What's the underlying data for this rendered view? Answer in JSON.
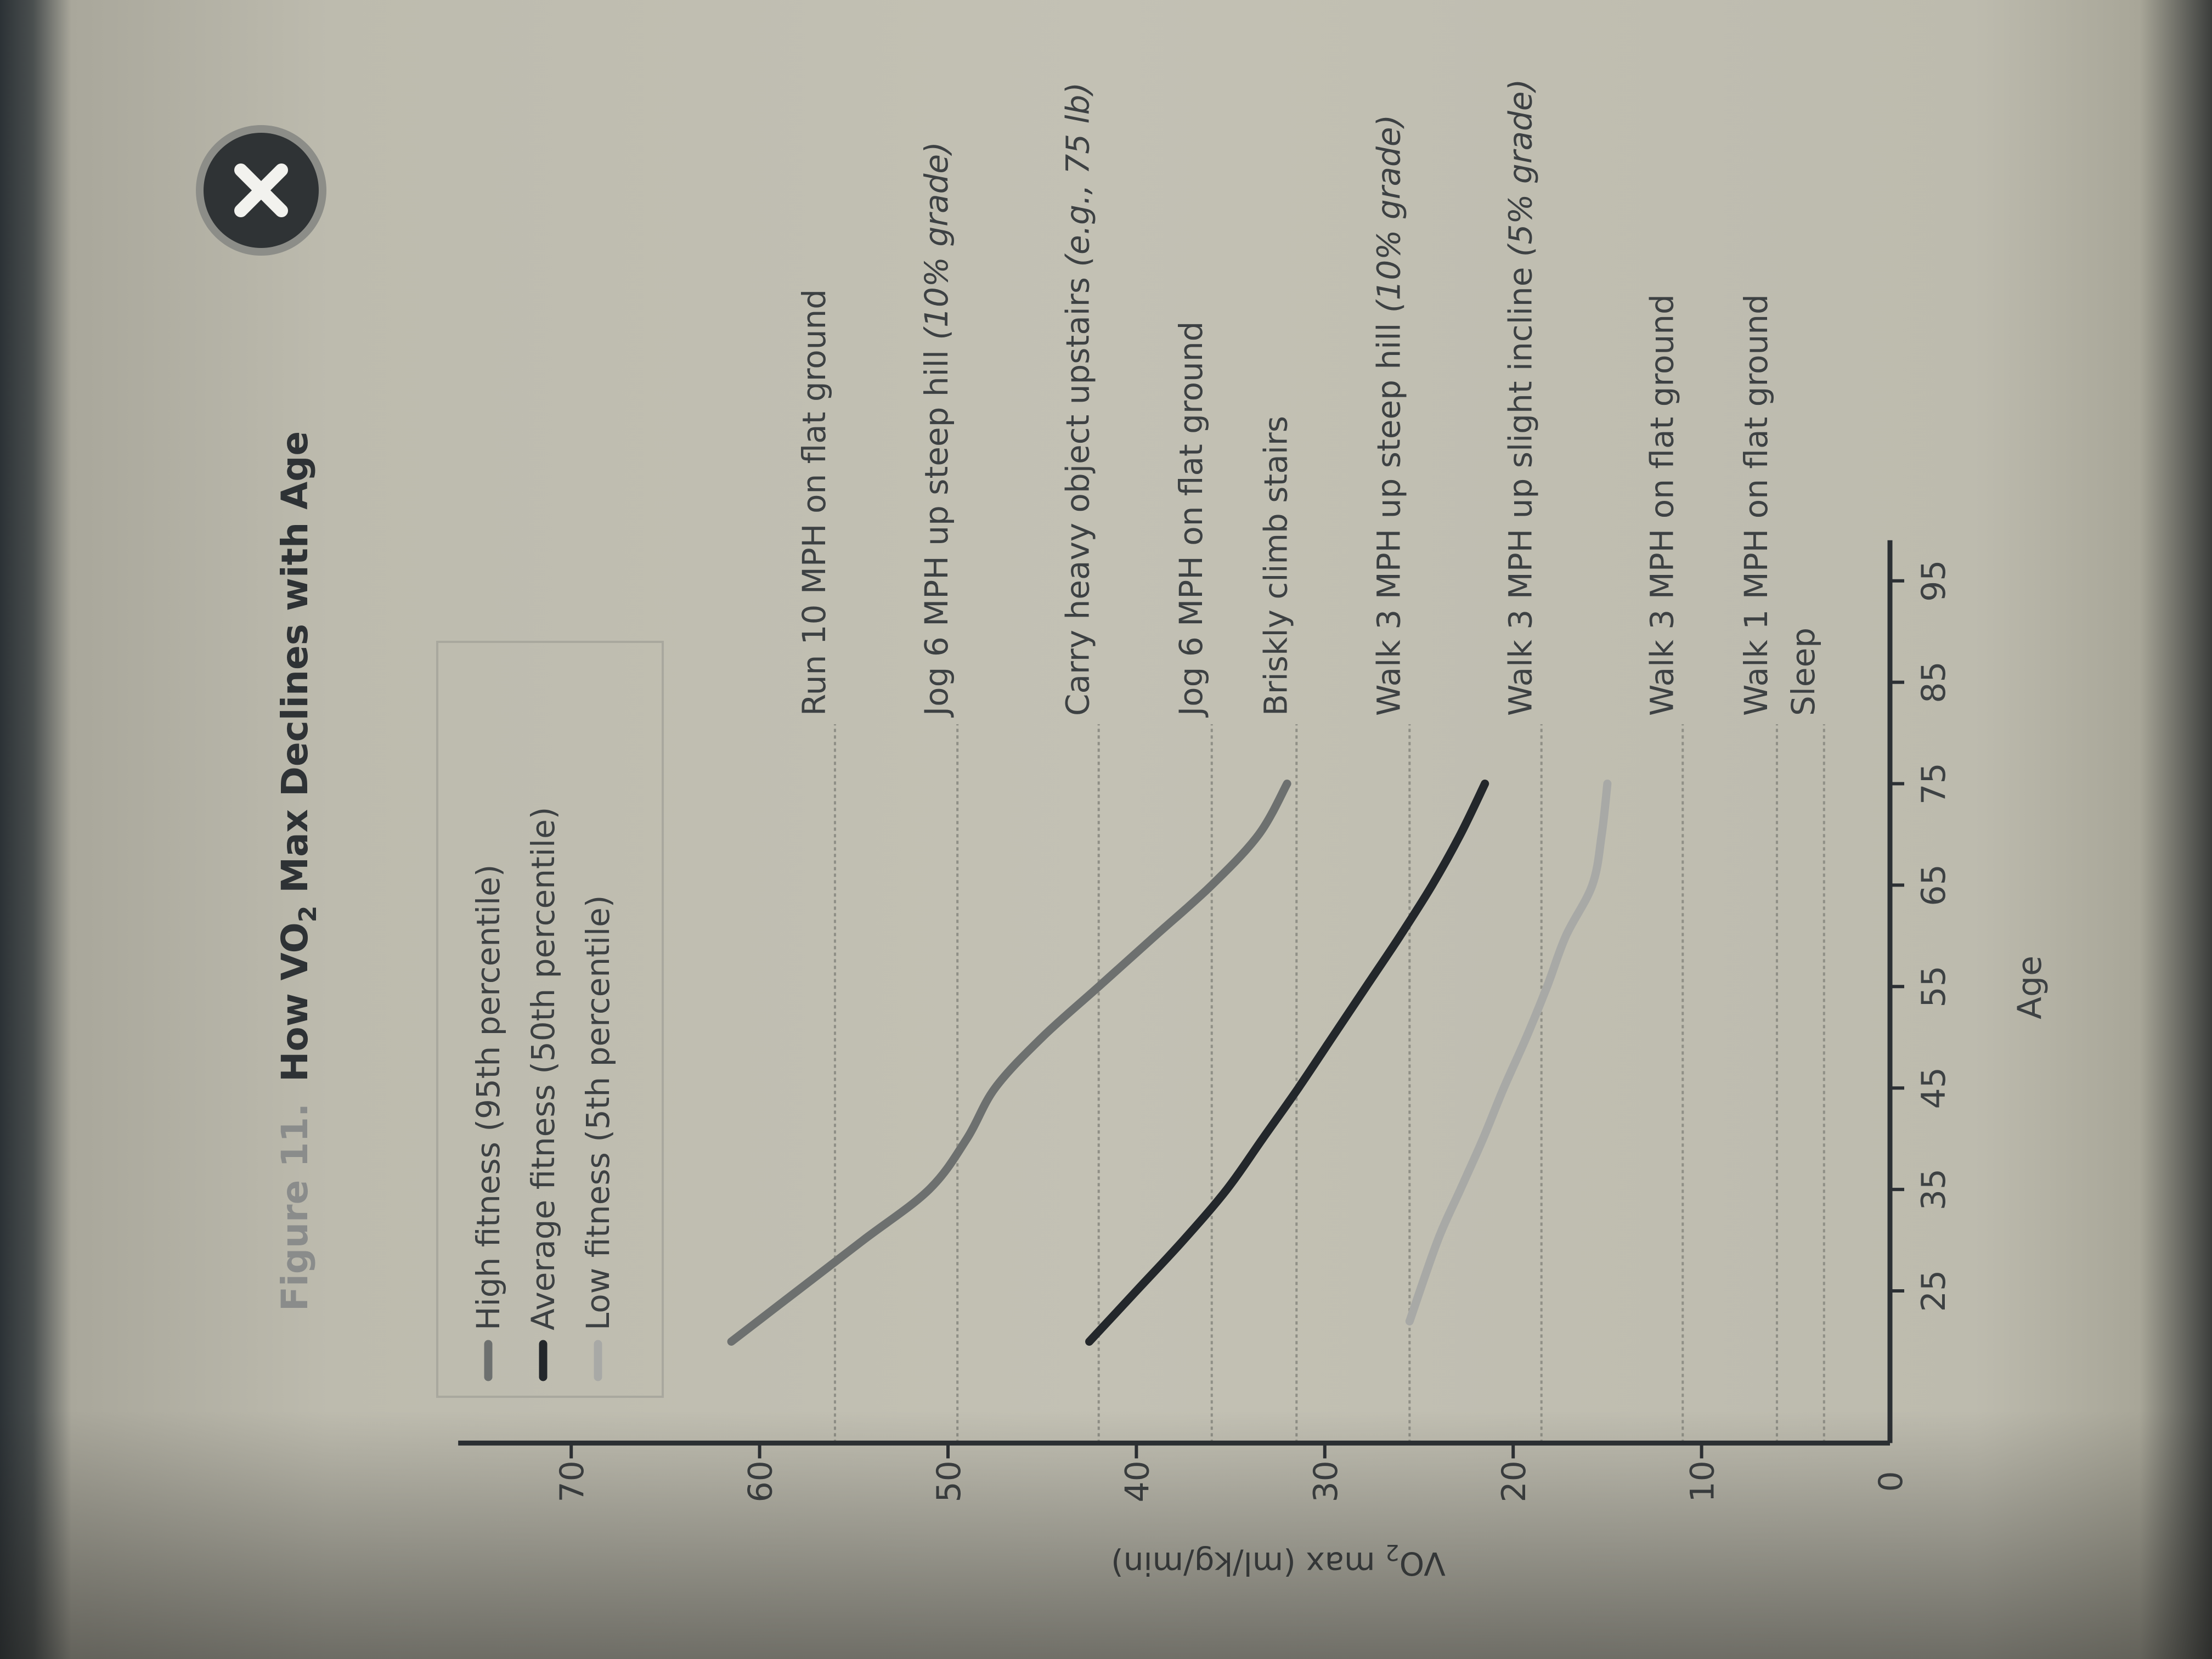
{
  "close_button": {
    "icon": "close-icon"
  },
  "chart_data": {
    "type": "line",
    "title_prefix": "Figure 11.",
    "title_parts": [
      "How VO",
      "2",
      " Max Declines with Age"
    ],
    "xlabel": "Age",
    "ylabel_parts": [
      "VO",
      "2",
      " max (ml/kg/min)"
    ],
    "xlim": [
      10,
      99
    ],
    "ylim": [
      0,
      76
    ],
    "x_ticks": [
      25,
      35,
      45,
      55,
      65,
      75,
      85,
      95
    ],
    "y_ticks": [
      0,
      10,
      20,
      30,
      40,
      50,
      60,
      70
    ],
    "legend_position": "top-left",
    "series": [
      {
        "name": "High fitness (95th percentile)",
        "color": "#6d706f",
        "x": [
          20,
          25,
          30,
          35,
          40,
          45,
          50,
          55,
          60,
          65,
          70,
          75
        ],
        "y": [
          61.5,
          58,
          54.5,
          51,
          49,
          47.5,
          45,
          42,
          39,
          36,
          33.5,
          32
        ]
      },
      {
        "name": "Average fitness (50th percentile)",
        "color": "#23272b",
        "x": [
          20,
          25,
          30,
          35,
          40,
          45,
          50,
          55,
          60,
          65,
          70,
          75
        ],
        "y": [
          42.5,
          40,
          37.5,
          35.2,
          33.3,
          31.4,
          29.6,
          27.8,
          26,
          24.3,
          22.8,
          21.5
        ]
      },
      {
        "name": "Low fitness (5th percentile)",
        "color": "#a8a9a6",
        "x": [
          22,
          30,
          35,
          40,
          45,
          50,
          55,
          60,
          65,
          70,
          75
        ],
        "y": [
          25.5,
          24,
          22.8,
          21.6,
          20.5,
          19.3,
          18.2,
          17.2,
          15.8,
          15.3,
          15
        ]
      }
    ],
    "reference_lines": [
      {
        "label": "Run 10 MPH on flat ground",
        "note": "",
        "value": 56
      },
      {
        "label": "Jog 6 MPH up steep hill ",
        "note": "(10% grade)",
        "value": 49.5
      },
      {
        "label": "Carry heavy object upstairs ",
        "note": "(e.g., 75 lb)",
        "value": 42
      },
      {
        "label": "Jog 6 MPH on flat ground",
        "note": "",
        "value": 36
      },
      {
        "label": "Briskly climb stairs",
        "note": "",
        "value": 31.5
      },
      {
        "label": "Walk 3 MPH up steep hill ",
        "note": "(10% grade)",
        "value": 25.5
      },
      {
        "label": "Walk 3 MPH up slight incline ",
        "note": "(5% grade)",
        "value": 18.5
      },
      {
        "label": "Walk 3 MPH on flat ground",
        "note": "",
        "value": 11
      },
      {
        "label": "Walk 1 MPH on flat ground",
        "note": "",
        "value": 6
      },
      {
        "label": "Sleep",
        "note": "",
        "value": 3.5
      }
    ]
  }
}
